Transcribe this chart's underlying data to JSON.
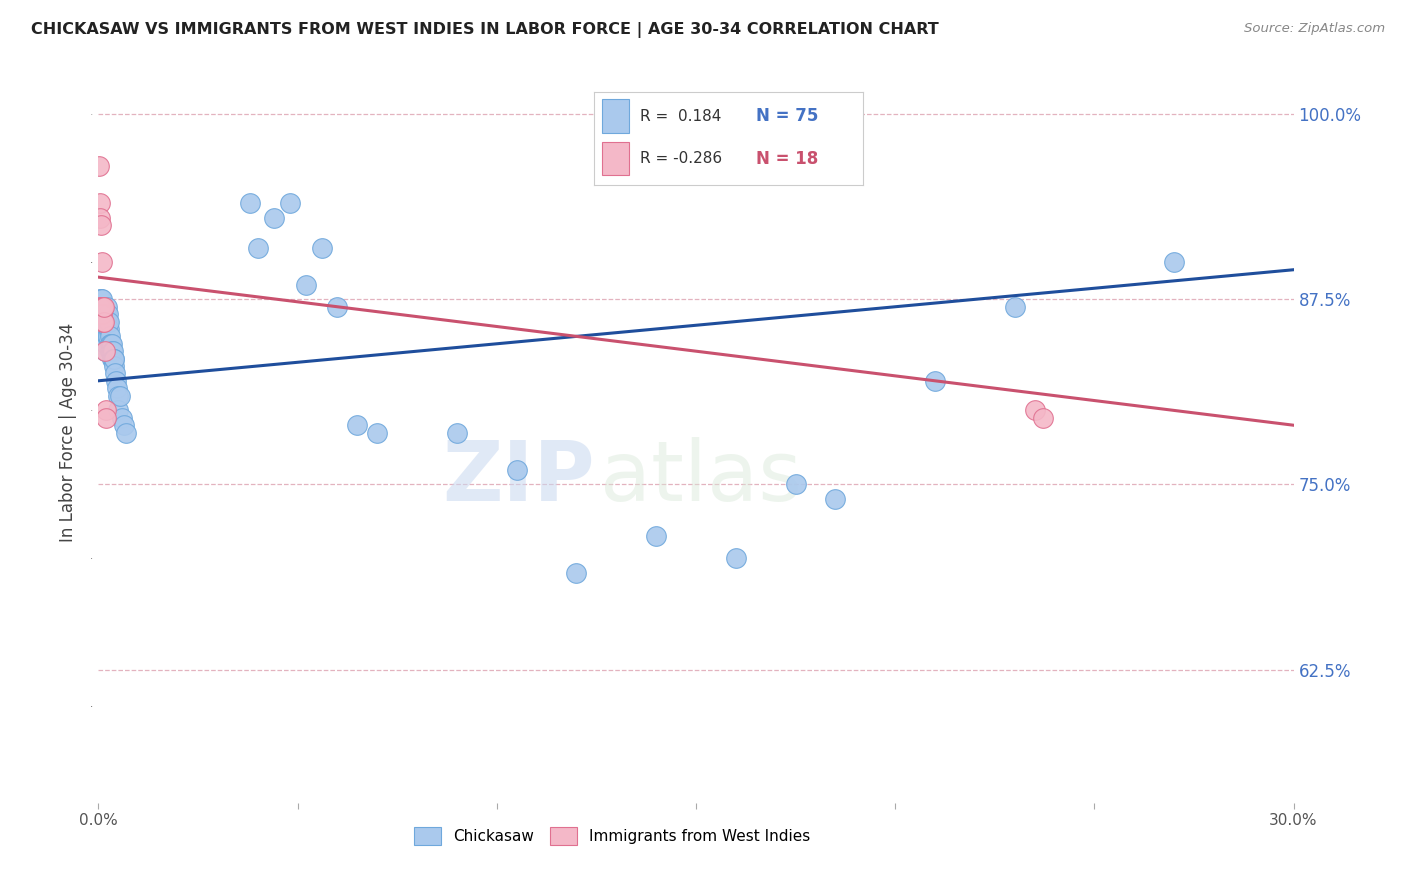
{
  "title": "CHICKASAW VS IMMIGRANTS FROM WEST INDIES IN LABOR FORCE | AGE 30-34 CORRELATION CHART",
  "source": "Source: ZipAtlas.com",
  "ylabel": "In Labor Force | Age 30-34",
  "yticks": [
    0.625,
    0.75,
    0.875,
    1.0
  ],
  "ytick_labels": [
    "62.5%",
    "75.0%",
    "87.5%",
    "100.0%"
  ],
  "xmin": 0.0,
  "xmax": 0.3,
  "ymin": 0.535,
  "ymax": 1.035,
  "blue_color": "#aac9ed",
  "blue_edge": "#6fa8dc",
  "pink_color": "#f4b8c8",
  "pink_edge": "#e07090",
  "blue_line_color": "#1f4e9c",
  "pink_line_color": "#c9516e",
  "legend_blue_R": "0.184",
  "legend_blue_N": "75",
  "legend_pink_R": "-0.286",
  "legend_pink_N": "18",
  "watermark_zip": "ZIP",
  "watermark_atlas": "atlas",
  "grid_color": "#dda0b0",
  "blue_scatter_x": [
    0.0002,
    0.0002,
    0.0003,
    0.0004,
    0.0005,
    0.0005,
    0.0006,
    0.0007,
    0.0008,
    0.0008,
    0.0009,
    0.001,
    0.001,
    0.0011,
    0.0012,
    0.0012,
    0.0013,
    0.0013,
    0.0014,
    0.0015,
    0.0015,
    0.0016,
    0.0017,
    0.0018,
    0.0018,
    0.0019,
    0.002,
    0.0021,
    0.0022,
    0.0023,
    0.0024,
    0.0025,
    0.0026,
    0.0027,
    0.0028,
    0.0029,
    0.003,
    0.0031,
    0.0032,
    0.0033,
    0.0034,
    0.0035,
    0.0036,
    0.0037,
    0.0038,
    0.0039,
    0.004,
    0.0042,
    0.0044,
    0.0046,
    0.0048,
    0.005,
    0.0055,
    0.006,
    0.0065,
    0.007,
    0.038,
    0.04,
    0.044,
    0.048,
    0.052,
    0.056,
    0.06,
    0.065,
    0.07,
    0.09,
    0.105,
    0.12,
    0.14,
    0.16,
    0.175,
    0.185,
    0.21,
    0.23,
    0.27
  ],
  "blue_scatter_y": [
    0.87,
    0.86,
    0.875,
    0.87,
    0.855,
    0.845,
    0.875,
    0.87,
    0.86,
    0.875,
    0.865,
    0.855,
    0.845,
    0.85,
    0.86,
    0.855,
    0.865,
    0.86,
    0.845,
    0.855,
    0.85,
    0.84,
    0.855,
    0.865,
    0.855,
    0.86,
    0.845,
    0.85,
    0.87,
    0.86,
    0.865,
    0.85,
    0.855,
    0.86,
    0.85,
    0.845,
    0.84,
    0.845,
    0.84,
    0.845,
    0.84,
    0.835,
    0.84,
    0.835,
    0.835,
    0.83,
    0.835,
    0.825,
    0.82,
    0.815,
    0.81,
    0.8,
    0.81,
    0.795,
    0.79,
    0.785,
    0.94,
    0.91,
    0.93,
    0.94,
    0.885,
    0.91,
    0.87,
    0.79,
    0.785,
    0.785,
    0.76,
    0.69,
    0.715,
    0.7,
    0.75,
    0.74,
    0.82,
    0.87,
    0.9
  ],
  "pink_scatter_x": [
    0.0002,
    0.0003,
    0.0004,
    0.0005,
    0.0006,
    0.0007,
    0.0008,
    0.0009,
    0.001,
    0.0011,
    0.0012,
    0.0013,
    0.0015,
    0.0016,
    0.0018,
    0.002,
    0.235,
    0.237
  ],
  "pink_scatter_y": [
    0.965,
    0.94,
    0.93,
    0.87,
    0.87,
    0.925,
    0.9,
    0.87,
    0.865,
    0.86,
    0.87,
    0.86,
    0.87,
    0.84,
    0.8,
    0.795,
    0.8,
    0.795
  ],
  "blue_line_x0": 0.0,
  "blue_line_x1": 0.3,
  "blue_line_y0": 0.82,
  "blue_line_y1": 0.895,
  "pink_line_x0": 0.0,
  "pink_line_x1": 0.3,
  "pink_line_y0": 0.89,
  "pink_line_y1": 0.79
}
